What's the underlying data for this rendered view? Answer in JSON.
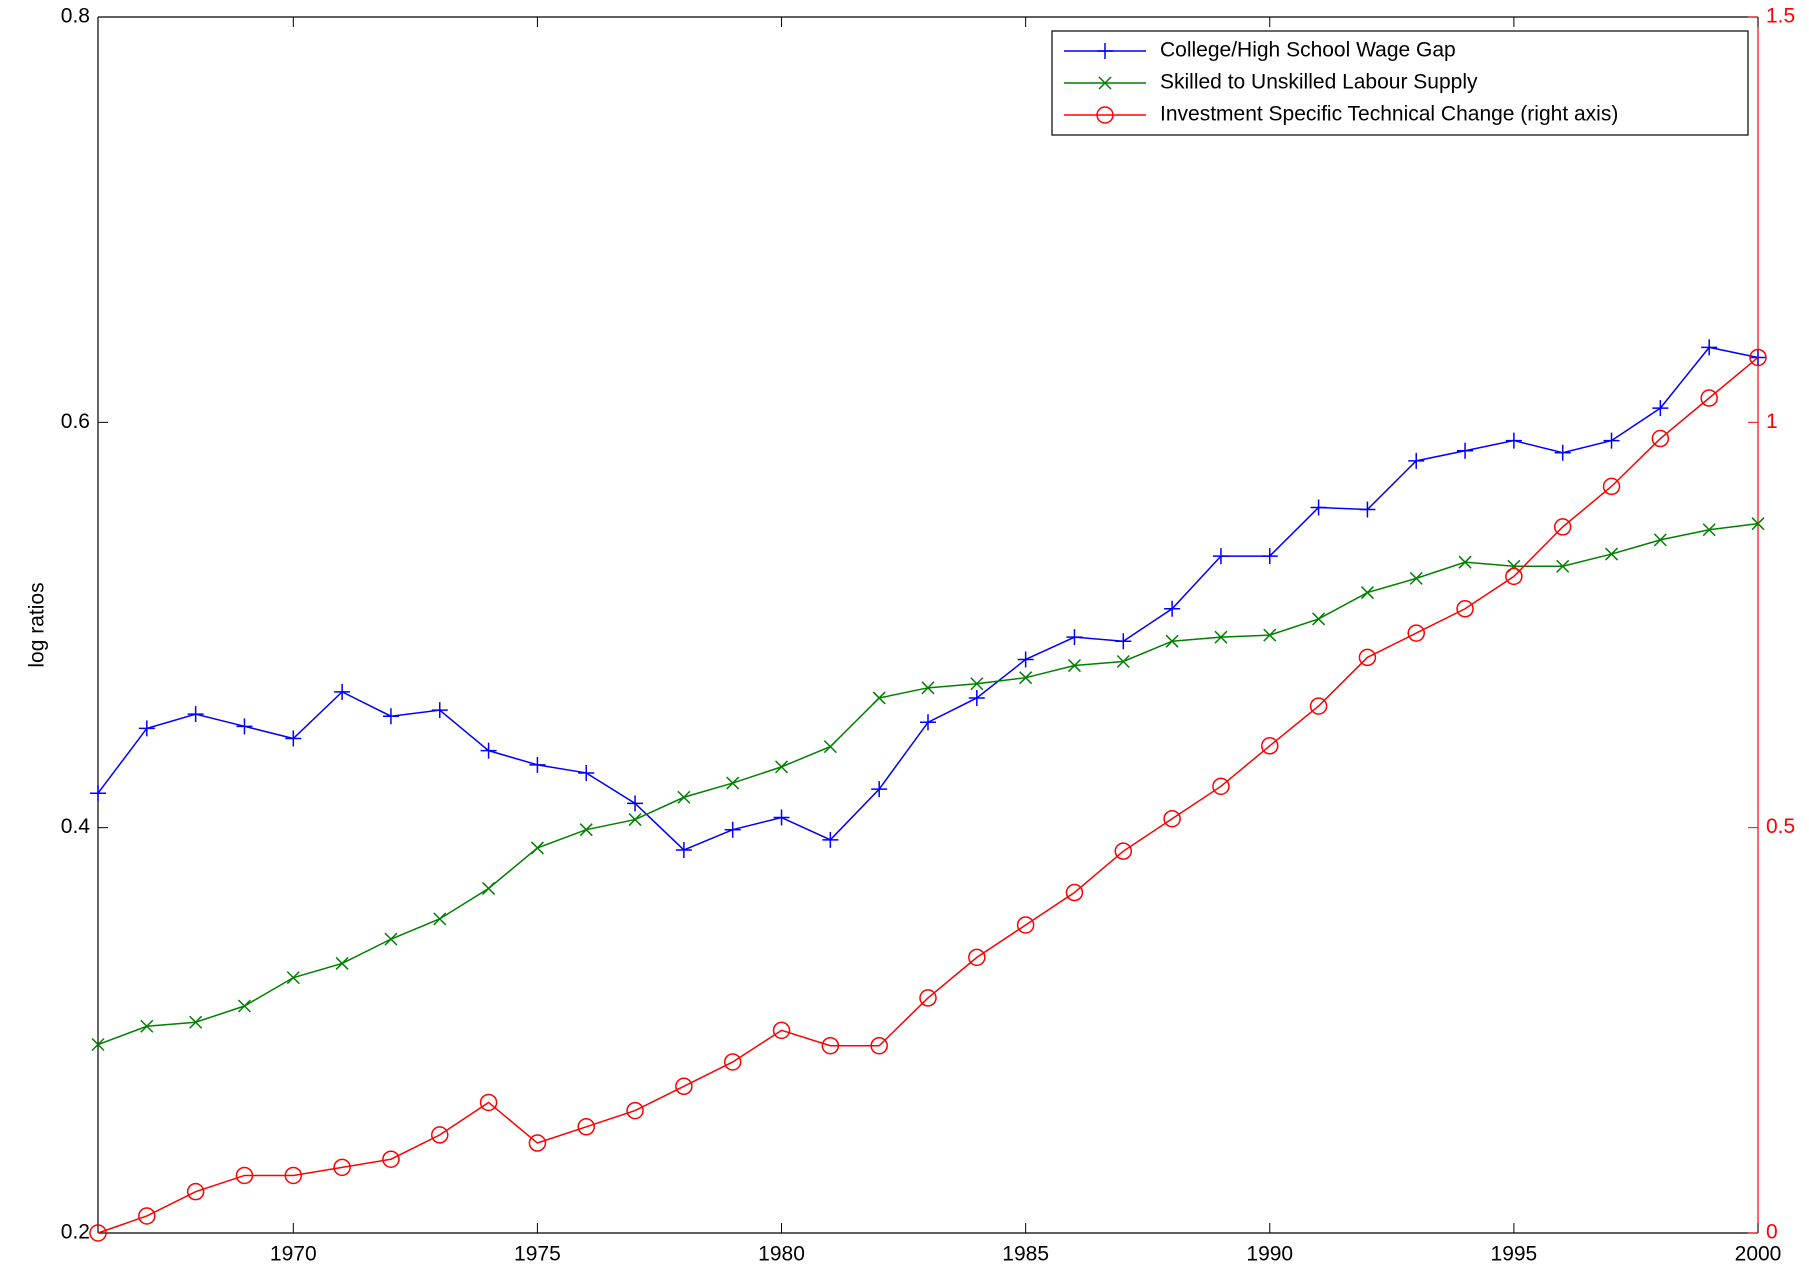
{
  "chart_data": {
    "type": "line",
    "ylabel": "log ratios",
    "x": [
      1966,
      1967,
      1968,
      1969,
      1970,
      1971,
      1972,
      1973,
      1974,
      1975,
      1976,
      1977,
      1978,
      1979,
      1980,
      1981,
      1982,
      1983,
      1984,
      1985,
      1986,
      1987,
      1988,
      1989,
      1990,
      1991,
      1992,
      1993,
      1994,
      1995,
      1996,
      1997,
      1998,
      1999,
      2000
    ],
    "xlim": [
      1966,
      2000
    ],
    "xticks": [
      1970,
      1975,
      1980,
      1985,
      1990,
      1995,
      2000
    ],
    "ylim": [
      0.2,
      0.8
    ],
    "yticks": [
      0.2,
      0.4,
      0.6,
      0.8
    ],
    "y2lim": [
      0,
      1.5
    ],
    "y2ticks": [
      0,
      0.5,
      1,
      1.5
    ],
    "y2color": "#ff0000",
    "grid": false,
    "legend": "upper right",
    "series": [
      {
        "name": "College/High School Wage Gap",
        "color": "#0000ff",
        "marker": "plus",
        "values": [
          0.417,
          0.449,
          0.456,
          0.45,
          0.444,
          0.467,
          0.455,
          0.458,
          0.438,
          0.431,
          0.427,
          0.412,
          0.389,
          0.399,
          0.405,
          0.394,
          0.419,
          0.452,
          0.464,
          0.483,
          0.494,
          0.492,
          0.508,
          0.534,
          0.534,
          0.558,
          0.557,
          0.581,
          0.586,
          0.591,
          0.585,
          0.591,
          0.607,
          0.637,
          0.632
        ]
      },
      {
        "name": "Skilled to Unskilled Labour Supply",
        "color": "#008000",
        "marker": "x",
        "values": [
          0.293,
          0.302,
          0.304,
          0.312,
          0.326,
          0.333,
          0.345,
          0.355,
          0.37,
          0.39,
          0.399,
          0.404,
          0.415,
          0.422,
          0.43,
          0.44,
          0.464,
          0.469,
          0.471,
          0.474,
          0.48,
          0.482,
          0.492,
          0.494,
          0.495,
          0.503,
          0.516,
          0.523,
          0.531,
          0.529,
          0.529,
          0.535,
          0.542,
          0.547,
          0.55
        ]
      },
      {
        "name": "Investment Specific Technical Change (right axis)",
        "color": "#ff0000",
        "marker": "circle",
        "axis": "y2",
        "values": [
          0,
          0.021,
          0.051,
          0.071,
          0.071,
          0.081,
          0.091,
          0.121,
          0.161,
          0.111,
          0.131,
          0.151,
          0.181,
          0.211,
          0.25,
          0.231,
          0.231,
          0.29,
          0.34,
          0.38,
          0.42,
          0.471,
          0.511,
          0.551,
          0.601,
          0.65,
          0.71,
          0.74,
          0.77,
          0.81,
          0.871,
          0.921,
          0.98,
          1.03,
          1.08
        ]
      }
    ]
  }
}
